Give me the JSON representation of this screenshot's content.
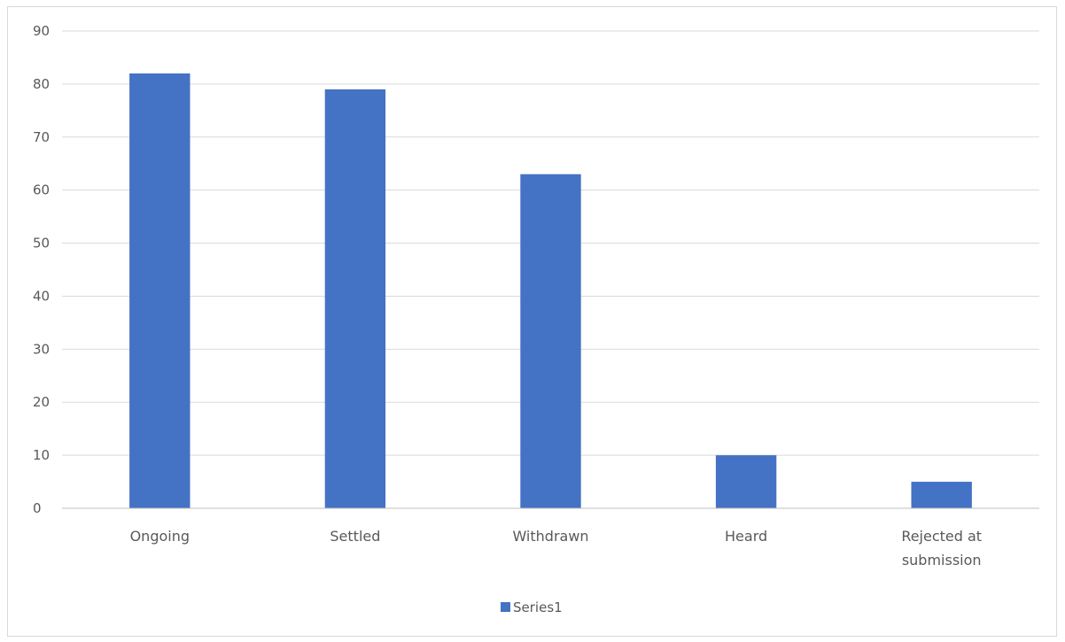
{
  "chart_data": {
    "type": "bar",
    "title": "",
    "xlabel": "",
    "ylabel": "",
    "categories": [
      [
        "Ongoing"
      ],
      [
        "Settled"
      ],
      [
        "Withdrawn"
      ],
      [
        "Heard"
      ],
      [
        "Rejected at",
        "submission"
      ]
    ],
    "series": [
      {
        "name": "Series1",
        "values": [
          82,
          79,
          63,
          10,
          5
        ]
      }
    ],
    "ylim": [
      0,
      90
    ],
    "yticks": [
      0,
      10,
      20,
      30,
      40,
      50,
      60,
      70,
      80,
      90
    ],
    "grid": true,
    "legend": "bottom",
    "colors": {
      "bar": "#4472C4",
      "grid": "#d9d9d9",
      "axis": "#bfbfbf",
      "text": "#595959"
    }
  }
}
